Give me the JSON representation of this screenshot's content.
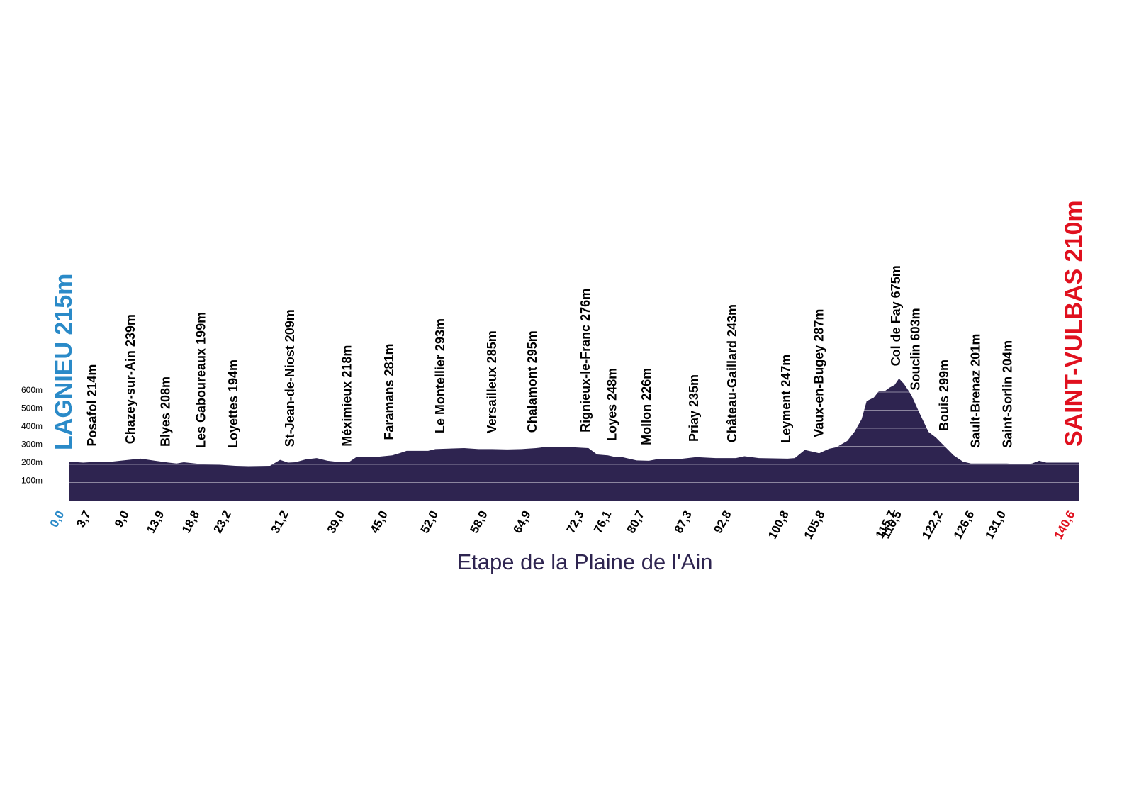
{
  "chart_data": {
    "type": "area",
    "title": "Etape de la Plaine de l'Ain",
    "start_label": "LAGNIEU 215m",
    "end_label": "SAINT-VULBAS 210m",
    "start_color": "#2a8ac8",
    "end_color": "#e0101e",
    "color": "#2e2450",
    "grid": true,
    "xlim": [
      0,
      140.6
    ],
    "ylim": [
      0,
      600
    ],
    "yticks": [
      {
        "value": 100,
        "label": "100m"
      },
      {
        "value": 200,
        "label": "200m"
      },
      {
        "value": 300,
        "label": "300m"
      },
      {
        "value": 400,
        "label": "400m"
      },
      {
        "value": 500,
        "label": "500m"
      },
      {
        "value": 600,
        "label": "600m"
      }
    ],
    "xticks": [
      {
        "value": 0,
        "label": "0,0"
      },
      {
        "value": 3.7,
        "label": "3,7"
      },
      {
        "value": 9,
        "label": "9,0"
      },
      {
        "value": 13.9,
        "label": "13,9"
      },
      {
        "value": 18.8,
        "label": "18,8"
      },
      {
        "value": 23.2,
        "label": "23,2"
      },
      {
        "value": 31.2,
        "label": "31,2"
      },
      {
        "value": 39,
        "label": "39,0"
      },
      {
        "value": 45,
        "label": "45,0"
      },
      {
        "value": 52,
        "label": "52,0"
      },
      {
        "value": 58.9,
        "label": "58,9"
      },
      {
        "value": 64.9,
        "label": "64,9"
      },
      {
        "value": 72.3,
        "label": "72,3"
      },
      {
        "value": 76.1,
        "label": "76,1"
      },
      {
        "value": 80.7,
        "label": "80,7"
      },
      {
        "value": 87.3,
        "label": "87,3"
      },
      {
        "value": 92.8,
        "label": "92,8"
      },
      {
        "value": 100.8,
        "label": "100,8"
      },
      {
        "value": 105.8,
        "label": "105,8"
      },
      {
        "value": 115.7,
        "label": "115,7"
      },
      {
        "value": 116.5,
        "label": "116,5"
      },
      {
        "value": 122.2,
        "label": "122,2"
      },
      {
        "value": 126.6,
        "label": "126,6"
      },
      {
        "value": 131,
        "label": "131,0"
      },
      {
        "value": 140.6,
        "label": "140,6"
      }
    ],
    "annotations": [
      {
        "text": "Posafol 214m",
        "x": 3.4
      },
      {
        "text": "Chazey-sur-Ain 239m",
        "x": 8.7
      },
      {
        "text": "Blyes 208m",
        "x": 13.6
      },
      {
        "text": "Les Gaboureaux 199m",
        "x": 18.5
      },
      {
        "text": "Loyettes 194m",
        "x": 23.0
      },
      {
        "text": "St-Jean-de-Niost 209m",
        "x": 30.9
      },
      {
        "text": "Méximieux 218m",
        "x": 38.8
      },
      {
        "text": "Faramans 281m",
        "x": 44.7
      },
      {
        "text": "Le Montellier 293m",
        "x": 51.8
      },
      {
        "text": "Versailleux 285m",
        "x": 59.0
      },
      {
        "text": "Chalamont 295m",
        "x": 64.6
      },
      {
        "text": "Rignieux-le-Franc 276m",
        "x": 72.0
      },
      {
        "text": "Loyes 248m",
        "x": 75.7
      },
      {
        "text": "Mollon 226m",
        "x": 80.5
      },
      {
        "text": "Priay 235m",
        "x": 87.1
      },
      {
        "text": "Château-Gaillard 243m",
        "x": 92.4
      },
      {
        "text": "Leyment 247m",
        "x": 99.9
      },
      {
        "text": "Vaux-en-Bugey 287m",
        "x": 104.5
      },
      {
        "text": "Col de Fay 675m",
        "x": 115.2
      },
      {
        "text": "Souclin 603m",
        "x": 117.9
      },
      {
        "text": "Bouis 299m",
        "x": 121.9
      },
      {
        "text": "Sault-Brenaz 201m",
        "x": 126.3
      },
      {
        "text": "Saint-Sorlin 204m",
        "x": 130.7
      }
    ],
    "x": [
      0,
      2,
      3.7,
      6,
      9,
      10,
      12,
      13.9,
      15,
      16,
      18.8,
      21,
      23.2,
      25,
      28,
      29.4,
      30.5,
      31.5,
      33,
      34.5,
      36,
      37.5,
      39,
      40,
      41,
      43,
      45,
      46,
      47,
      50,
      51,
      55,
      57,
      58.9,
      61,
      63,
      65,
      66,
      70,
      72.3,
      73.5,
      75,
      76.1,
      77,
      79,
      80.7,
      82,
      85,
      87.3,
      90,
      92.8,
      94,
      96,
      100,
      101,
      102.4,
      104.4,
      105.8,
      106.8,
      108.3,
      109.3,
      110.3,
      111,
      112,
      112.7,
      113.5,
      114.2,
      114.9,
      115.5,
      116.2,
      117.2,
      118.4,
      119.6,
      120.6,
      121.6,
      123.1,
      124.4,
      125.5,
      127.5,
      130.5,
      132.5,
      134,
      135,
      136,
      140.6
    ],
    "values": [
      215,
      210,
      214,
      215,
      228,
      232,
      220,
      210,
      205,
      212,
      200,
      198,
      192,
      190,
      192,
      225,
      210,
      212,
      228,
      235,
      220,
      213,
      213,
      240,
      243,
      242,
      250,
      262,
      275,
      275,
      285,
      290,
      285,
      285,
      283,
      285,
      290,
      295,
      295,
      290,
      255,
      250,
      240,
      240,
      222,
      220,
      230,
      230,
      240,
      235,
      235,
      245,
      235,
      232,
      235,
      280,
      262,
      287,
      295,
      330,
      380,
      450,
      550,
      570,
      605,
      605,
      625,
      640,
      675,
      645,
      585,
      480,
      380,
      350,
      310,
      250,
      215,
      205,
      205,
      205,
      200,
      205,
      220,
      210,
      210
    ]
  }
}
